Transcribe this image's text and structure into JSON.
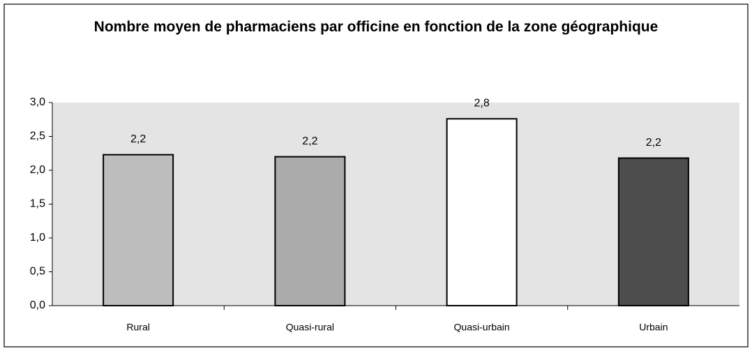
{
  "chart_data": {
    "type": "bar",
    "title": "Nombre moyen de pharmaciens par officine en fonction de la zone géographique",
    "categories": [
      "Rural",
      "Quasi-rural",
      "Quasi-urbain",
      "Urbain"
    ],
    "values": [
      2.23,
      2.2,
      2.76,
      2.18
    ],
    "value_labels": [
      "2,2",
      "2,2",
      "2,8",
      "2,2"
    ],
    "colors": [
      "#bdbdbd",
      "#ababab",
      "#ffffff",
      "#4d4d4d"
    ],
    "ylim": [
      0,
      3
    ],
    "yticks": [
      {
        "value": 0,
        "label": "0,0"
      },
      {
        "value": 0.5,
        "label": "0,5"
      },
      {
        "value": 1,
        "label": "1,0"
      },
      {
        "value": 1.5,
        "label": "1,5"
      },
      {
        "value": 2,
        "label": "2,0"
      },
      {
        "value": 2.5,
        "label": "2,5"
      },
      {
        "value": 3,
        "label": "3,0"
      }
    ],
    "grid": false
  }
}
